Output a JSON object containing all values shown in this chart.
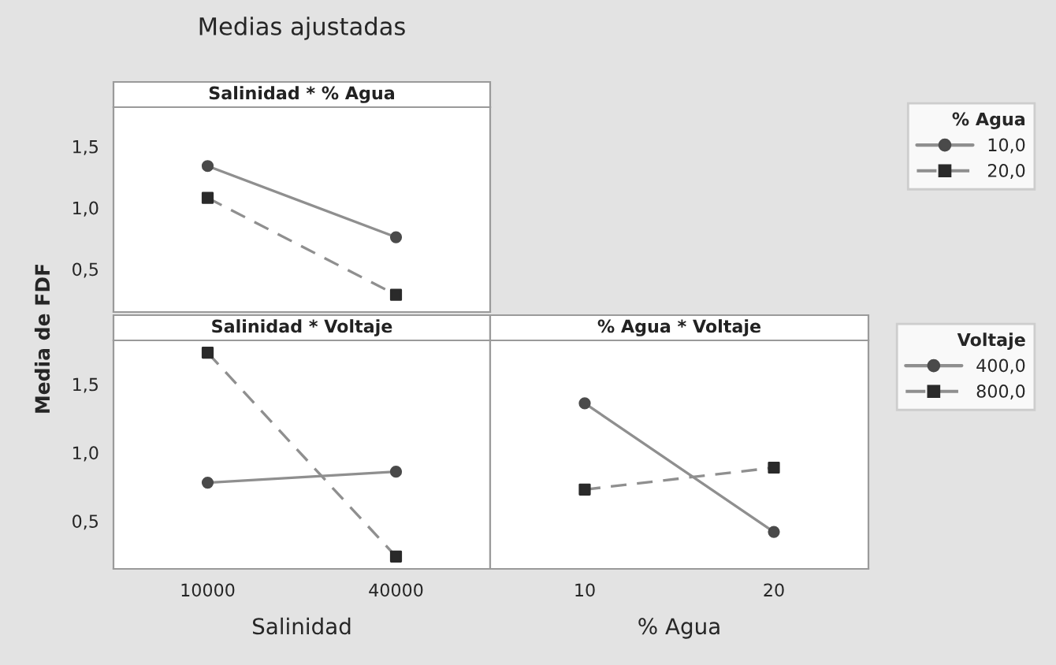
{
  "chart_data": [
    {
      "type": "line",
      "title": "Medias ajustadas",
      "subtitle": "Salinidad * % Agua",
      "ylabel": "Media de FDF",
      "legend_title": "% Agua",
      "legend": "top right",
      "tick_labels": "y",
      "grid": false,
      "categories": [
        "10000",
        "40000"
      ],
      "ylim": [
        0.15,
        1.82
      ],
      "yticks": [
        {
          "value": 0.5,
          "label": "0,5"
        },
        {
          "value": 1.0,
          "label": "1,0"
        },
        {
          "value": 1.5,
          "label": "1,5"
        }
      ],
      "series": [
        {
          "name": "10,0",
          "color": "#4a4a4a",
          "marker": "circle",
          "line_style": "solid",
          "values": [
            1.34,
            0.76
          ]
        },
        {
          "name": "20,0",
          "color": "#2a2a2a",
          "marker": "square",
          "line_style": "dashed",
          "values": [
            1.08,
            0.29
          ]
        }
      ]
    },
    {
      "type": "line",
      "title": "Salinidad * Voltaje",
      "xlabel": "Salinidad",
      "tick_labels": "xy",
      "grid": false,
      "categories": [
        "10000",
        "40000"
      ],
      "ylim": [
        0.15,
        1.82
      ],
      "yticks": [
        {
          "value": 0.5,
          "label": "0,5"
        },
        {
          "value": 1.0,
          "label": "1,0"
        },
        {
          "value": 1.5,
          "label": "1,5"
        }
      ],
      "series": [
        {
          "color": "#4a4a4a",
          "marker": "circle",
          "line_style": "solid",
          "values": [
            0.78,
            0.86
          ]
        },
        {
          "color": "#2a2a2a",
          "marker": "square",
          "line_style": "dashed",
          "values": [
            1.73,
            0.24
          ]
        }
      ]
    },
    {
      "type": "line",
      "title": "% Agua * Voltaje",
      "xlabel": "% Agua",
      "legend_title": "Voltaje",
      "legend": "right",
      "tick_labels": "x",
      "grid": false,
      "categories": [
        "10",
        "20"
      ],
      "ylim": [
        0.15,
        1.82
      ],
      "series": [
        {
          "name": "400,0",
          "color": "#4a4a4a",
          "marker": "circle",
          "line_style": "solid",
          "values": [
            1.36,
            0.42
          ]
        },
        {
          "name": "800,0",
          "color": "#2a2a2a",
          "marker": "square",
          "line_style": "dashed",
          "values": [
            0.73,
            0.89
          ]
        }
      ]
    }
  ]
}
